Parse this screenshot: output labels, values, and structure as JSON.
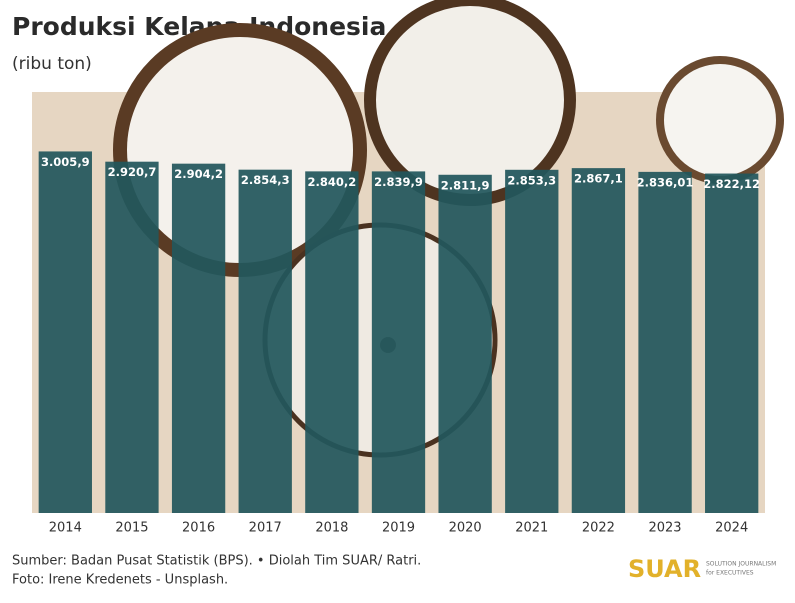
{
  "chart_data": {
    "type": "bar",
    "title": "Produksi Kelapa Indonesia",
    "subtitle": "(ribu ton)",
    "categories": [
      "2014",
      "2015",
      "2016",
      "2017",
      "2018",
      "2019",
      "2020",
      "2021",
      "2022",
      "2023",
      "2024"
    ],
    "values": [
      3005.9,
      2920.7,
      2904.2,
      2854.3,
      2840.2,
      2839.9,
      2811.9,
      2853.3,
      2867.1,
      2836.01,
      2822.12
    ],
    "value_labels": [
      "3.005,9",
      "2.920,7",
      "2.904,2",
      "2.854,3",
      "2.840,2",
      "2.839,9",
      "2.811,9",
      "2.853,3",
      "2.867,1",
      "2.836,01",
      "2.822,12"
    ],
    "color": "#22575c",
    "ylim": [
      0,
      3500
    ]
  },
  "footer": {
    "source": "Sumber: Badan Pusat Statistik (BPS). • Diolah Tim SUAR/ Ratri.",
    "photo": "Foto: Irene Kredenets - Unsplash."
  },
  "logo": {
    "name": "SUAR",
    "tagline_1": "SOLUTION JOURNALISM",
    "tagline_2": "for EXECUTIVES"
  }
}
